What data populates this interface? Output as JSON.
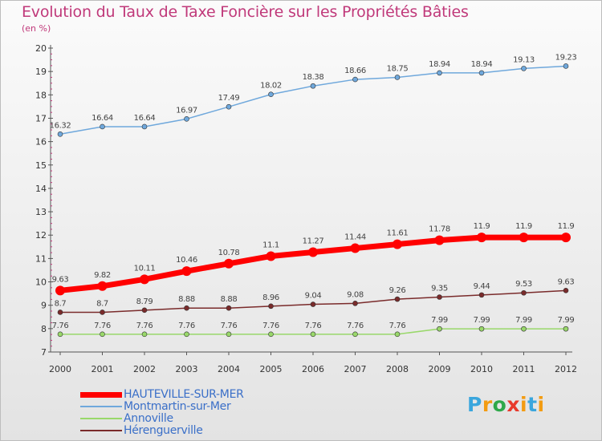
{
  "header": {
    "title": "Evolution du Taux de Taxe Foncière sur les Propriétés Bâties",
    "unit": "(en %)"
  },
  "logo": {
    "text": "Proxiti",
    "colors": [
      "#3aa6dd",
      "#f39c12",
      "#2ea84a",
      "#e8392b",
      "#f39c12",
      "#3aa6dd",
      "#f39c12"
    ]
  },
  "chart_data": {
    "type": "line",
    "x": [
      "2000",
      "2001",
      "2002",
      "2003",
      "2004",
      "2005",
      "2006",
      "2007",
      "2008",
      "2009",
      "2010",
      "2011",
      "2012"
    ],
    "ylim": [
      7,
      20
    ],
    "yticks": [
      "7",
      "8",
      "9",
      "10",
      "11",
      "12",
      "13",
      "14",
      "15",
      "16",
      "17",
      "18",
      "19",
      "20"
    ],
    "grid": false,
    "legend_position": "bottom-left",
    "series": [
      {
        "name": "HAUTEVILLE-SUR-MER",
        "color": "#ff0000",
        "values": [
          9.63,
          9.82,
          10.11,
          10.46,
          10.78,
          11.1,
          11.27,
          11.44,
          11.61,
          11.78,
          11.9,
          11.9,
          11.9
        ],
        "labels": [
          "9.63",
          "9.82",
          "10.11",
          "10.46",
          "10.78",
          "11.1",
          "11.27",
          "11.44",
          "11.61",
          "11.78",
          "11.9",
          "11.9",
          "11.9"
        ]
      },
      {
        "name": "Montmartin-sur-Mer",
        "color": "#6fa8dc",
        "values": [
          16.32,
          16.64,
          16.64,
          16.97,
          17.49,
          18.02,
          18.38,
          18.66,
          18.75,
          18.94,
          18.94,
          19.13,
          19.23
        ],
        "labels": [
          "16.32",
          "16.64",
          "16.64",
          "16.97",
          "17.49",
          "18.02",
          "18.38",
          "18.66",
          "18.75",
          "18.94",
          "18.94",
          "19.13",
          "19.23"
        ]
      },
      {
        "name": "Annoville",
        "color": "#99d86a",
        "values": [
          7.76,
          7.76,
          7.76,
          7.76,
          7.76,
          7.76,
          7.76,
          7.76,
          7.76,
          7.99,
          7.99,
          7.99,
          7.99
        ],
        "labels": [
          "7.76",
          "7.76",
          "7.76",
          "7.76",
          "7.76",
          "7.76",
          "7.76",
          "7.76",
          "7.76",
          "7.99",
          "7.99",
          "7.99",
          "7.99"
        ]
      },
      {
        "name": "Hérenguerville",
        "color": "#7a2b2b",
        "values": [
          8.7,
          8.7,
          8.79,
          8.88,
          8.88,
          8.96,
          9.04,
          9.08,
          9.26,
          9.35,
          9.44,
          9.53,
          9.63
        ],
        "labels": [
          "8.7",
          "8.7",
          "8.79",
          "8.88",
          "8.88",
          "8.96",
          "9.04",
          "9.08",
          "9.26",
          "9.35",
          "9.44",
          "9.53",
          "9.63"
        ]
      }
    ]
  }
}
